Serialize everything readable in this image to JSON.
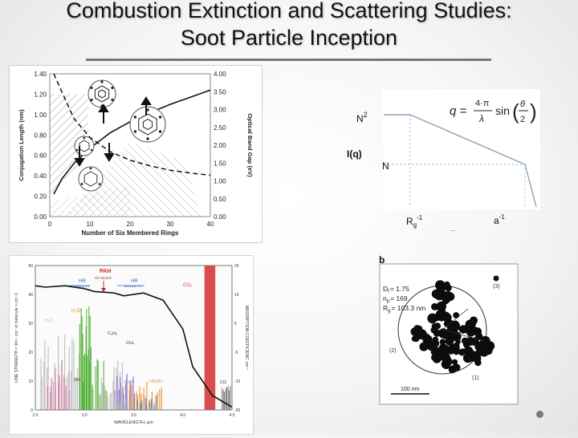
{
  "slide": {
    "title_line1": "Combustion Extinction and Scattering Studies:",
    "title_line2": "Soot Particle Inception"
  },
  "chart_data": [
    {
      "type": "line",
      "id": "conjugation-vs-rings",
      "x": [
        1,
        3,
        6,
        10,
        15,
        20,
        25,
        30,
        35,
        40
      ],
      "series": [
        {
          "values": [
            0.22,
            0.37,
            0.52,
            0.67,
            0.82,
            0.93,
            1.02,
            1.1,
            1.17,
            1.24
          ],
          "axis": "left",
          "style": "solid"
        },
        {
          "values": [
            4.45,
            3.5,
            2.75,
            2.22,
            1.82,
            1.58,
            1.42,
            1.3,
            1.22,
            1.16
          ],
          "axis": "right",
          "style": "dashed"
        }
      ],
      "xlabel": "Number of Six Membered Rings",
      "ylabel": "Conjugation Length (nm)",
      "ylabel_right": "Optical Band Gap (eV)",
      "xlim": [
        0,
        40
      ],
      "ylim": [
        0,
        1.4
      ],
      "ylim_right": [
        0,
        4
      ],
      "xticks": [
        "0",
        "10",
        "20",
        "30",
        "40"
      ],
      "yticks": [
        "0.00",
        "0.20",
        "0.40",
        "0.60",
        "0.80",
        "1.00",
        "1.20",
        "1.40"
      ],
      "yticks_right": [
        "0.00",
        "0.50",
        "1.00",
        "1.50",
        "2.00",
        "2.50",
        "3.00",
        "3.50",
        "4.00"
      ],
      "grid": false
    },
    {
      "type": "line",
      "id": "structure-factor",
      "x": [
        0.0,
        0.3,
        1.0
      ],
      "series": [
        {
          "values": [
            1.0,
            1.0,
            0.0
          ]
        }
      ],
      "annotations": {
        "plateau": "N",
        "plateau_exp": "2",
        "ylabel": "I(q)",
        "level": "N",
        "rg_mark": "R",
        "rg_sub": "g",
        "rg_exp": "-1",
        "xlabel": "q",
        "a_mark": "a",
        "a_exp": "-1",
        "formula_lhs": "q =",
        "formula_num": "4·π",
        "formula_den": "λ",
        "formula_fn": "sin",
        "formula_arg_num": "θ",
        "formula_arg_den": "2"
      }
    },
    {
      "type": "area",
      "id": "line-strength-spectrum",
      "x": [
        2.5,
        2.6,
        2.8,
        3.0,
        3.1,
        3.3,
        3.4,
        3.6,
        3.8,
        4.0,
        4.1,
        4.2,
        4.3,
        4.5
      ],
      "series": [
        {
          "values": [
            18,
            17.5,
            18,
            17,
            16,
            15.5,
            14.5,
            15.5,
            13,
            3,
            -10,
            -15,
            -20,
            -24
          ],
          "axis": "right",
          "style": "line"
        }
      ],
      "xlabel": "WAVELENGTH, μm",
      "ylabel": "LINE STRENGTH × 10¹⁹, cm⁻¹/( molecule × cm⁻²)",
      "ylabel_right": "ABSORPTION COEFFICIENT, cm⁻¹",
      "xlim": [
        2.5,
        4.5
      ],
      "ylim": [
        0,
        50
      ],
      "ylim_right": [
        -25,
        25
      ],
      "xticks": [
        "2.5",
        "3.0",
        "3.5",
        "4.0",
        "4.5"
      ],
      "yticks": [
        "0",
        "10",
        "20",
        "30",
        "40",
        "50"
      ],
      "yticks_right": [
        "-25",
        "-15",
        "-5",
        "5",
        "15",
        "25"
      ],
      "annotations": {
        "pah": "PAH",
        "oil_stretch": "Oil Stretch",
        "hr1": "HR",
        "hr1_sub": "Mailing 3.0",
        "hr2": "HR",
        "hr2_sub": "Midstate 3.1",
        "co2": "CO₂",
        "h2o_top": "H₂O",
        "h2o_left": "H₂O",
        "c2h2": "C₂H₂",
        "ch4": "CH₄",
        "oh": "OH",
        "c2h6": "C₂H₆",
        "hcho": "HCHO",
        "co": "CO"
      },
      "colors": {
        "co2": "#d63a3a",
        "green": "#4caf2f",
        "orange": "#f08a1c",
        "purple": "#8c6ccf",
        "blue": "#4a78c8",
        "pink": "#e07aa8",
        "gray": "#b9b9b9"
      }
    }
  ],
  "aggregate": {
    "panel_label": "b",
    "df": "D",
    "df_sub": "f",
    "df_val": "= 1.75",
    "np": "n",
    "np_sub": "p",
    "np_val": "= 169",
    "rg": "R",
    "rg_sub": "g",
    "rg_val": "= 103.3 nm",
    "mark1": "(1)",
    "mark2": "(2)",
    "mark3": "(3)",
    "scale": "100 nm"
  }
}
